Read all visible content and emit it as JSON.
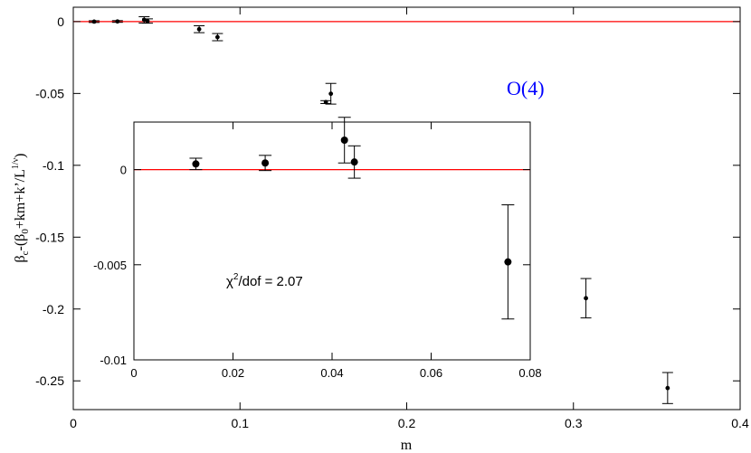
{
  "chart_data": [
    {
      "type": "scatter",
      "role": "main",
      "xlabel": "m",
      "ylabel_text": "β",
      "ylabel_parts": [
        "β",
        "c",
        "-(β",
        "0",
        "+km+k’/L",
        "1/ν",
        ")"
      ],
      "annotation": "O(4)",
      "colors": {
        "data": "#000000",
        "reference_line": "#ff0000",
        "annotation": "#0000ff"
      },
      "xlim": [
        0,
        0.4
      ],
      "ylim": [
        -0.27,
        0.01
      ],
      "xticks": [
        0,
        0.1,
        0.2,
        0.3,
        0.4
      ],
      "xtick_labels": [
        "0",
        "0.1",
        "0.2",
        "0.3",
        "0.4"
      ],
      "yticks": [
        0,
        -0.05,
        -0.1,
        -0.15,
        -0.2,
        -0.25
      ],
      "ytick_labels": [
        "0",
        "-0.05",
        "-0.1",
        "-0.15",
        "-0.2",
        "-0.25"
      ],
      "reference_line_y": 0,
      "points": [
        {
          "x": 0.0125,
          "y": 0.0,
          "err": 0.0006
        },
        {
          "x": 0.0265,
          "y": 0.0001,
          "err": 0.0006
        },
        {
          "x": 0.0425,
          "y": 0.0012,
          "err": 0.0022
        },
        {
          "x": 0.0445,
          "y": 0.0004,
          "err": 0.0015
        },
        {
          "x": 0.0755,
          "y": -0.0053,
          "err": 0.0024
        },
        {
          "x": 0.0865,
          "y": -0.0108,
          "err": 0.0025
        },
        {
          "x": 0.1515,
          "y": -0.056,
          "err": 0.001
        },
        {
          "x": 0.1545,
          "y": -0.0502,
          "err": 0.0072
        },
        {
          "x": 0.3075,
          "y": -0.1925,
          "err": 0.0137
        },
        {
          "x": 0.3565,
          "y": -0.255,
          "err": 0.0108
        }
      ]
    },
    {
      "type": "scatter",
      "role": "inset",
      "annotation": "χ2/dof = 2.07",
      "annotation_parts": [
        "χ",
        "2",
        "/dof = 2.07"
      ],
      "colors": {
        "data": "#000000",
        "reference_line": "#ff0000"
      },
      "xlim": [
        0,
        0.08
      ],
      "ylim": [
        -0.01,
        0.0025
      ],
      "xticks": [
        0,
        0.02,
        0.04,
        0.06,
        0.08
      ],
      "xtick_labels": [
        "0",
        "0.02",
        "0.04",
        "0.06",
        "0.08"
      ],
      "yticks": [
        0,
        -0.005,
        -0.01
      ],
      "ytick_labels": [
        "0",
        "-0.005",
        "-0.01"
      ],
      "reference_line_y": 0,
      "points": [
        {
          "x": 0.0125,
          "y": 0.0003,
          "err": 0.0003
        },
        {
          "x": 0.0265,
          "y": 0.00035,
          "err": 0.0004
        },
        {
          "x": 0.0425,
          "y": 0.00155,
          "err": 0.0012
        },
        {
          "x": 0.0445,
          "y": 0.0004,
          "err": 0.00085
        },
        {
          "x": 0.0755,
          "y": -0.00485,
          "err": 0.003
        }
      ]
    }
  ]
}
